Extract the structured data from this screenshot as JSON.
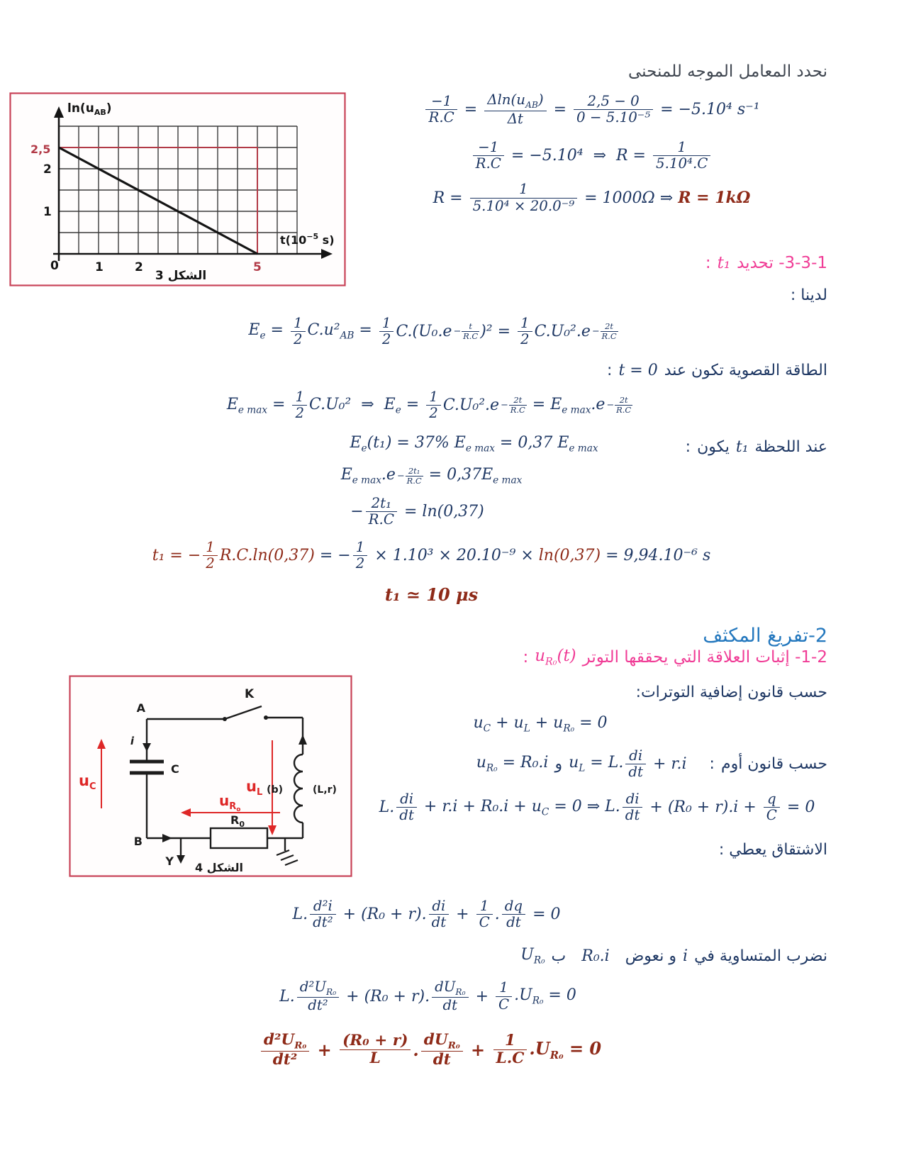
{
  "colors": {
    "body_text": "#1f3864",
    "result_red": "#8e2a18",
    "heading_pink": "#f03c96",
    "heading_blue": "#2478be",
    "heading_gray": "#3f4650",
    "figure_border": "#c84358",
    "graph_overlay_red": "#b23a47",
    "circuit_red": "#de2727"
  },
  "chart_data": {
    "type": "line",
    "title": "",
    "xlabel": "t(10⁻⁵ s)",
    "ylabel": "ln(u_AB)",
    "x": [
      0,
      5
    ],
    "y": [
      2.5,
      0
    ],
    "xlim": [
      0,
      6
    ],
    "ylim": [
      0,
      2.75
    ],
    "x_ticks_labeled": [
      "0",
      "1",
      "2",
      "5"
    ],
    "y_ticks_labeled": [
      "2,5",
      "2",
      "1"
    ],
    "grid": true,
    "legend": false,
    "annotations": [
      "red rectangle from (0,0) to (5, 2.5) marking the slope reading",
      "caption الشكل 3"
    ]
  },
  "fig3": {
    "caption": "الشكل 3",
    "y_label_pre": "ln(u",
    "y_label_sub": "AB",
    "y_label_post": ")",
    "x_label_pre": "t(10",
    "x_label_sup": "−5",
    "x_label_post": " s)",
    "tick_y_25": "2,5",
    "tick_y_2": "2",
    "tick_y_1": "1",
    "tick_x_0": "0",
    "tick_x_1": "1",
    "tick_x_2": "2",
    "tick_x_5": "5"
  },
  "fig4": {
    "caption": "الشكل 4",
    "node_a": "A",
    "node_b": "B",
    "switch_k": "K",
    "current_i": "i",
    "cap_c": "C",
    "probe_y": "Y",
    "r0_pre": "R",
    "r0_sub": "0",
    "coil_label": "(L,r)",
    "branch_label": "(b)",
    "uc_pre": "u",
    "uc_sub": "C",
    "ul_pre": "u",
    "ul_sub": "L",
    "ur0_pre": "u",
    "ur0_sub": "R",
    "ur0_sub2": "o"
  },
  "lines": {
    "slope_heading": {
      "segs": [
        {
          "a": "نحدد المعامل الموجه للمنحنى"
        }
      ]
    },
    "eq_slope1": {
      "segs": [
        {
          "m": [
            {
              "f": [
                "−1",
                "R.C"
              ]
            },
            {
              "x": " = "
            },
            {
              "f": [
                "Δln(u_{AB})",
                "Δt"
              ]
            },
            {
              "x": " = "
            },
            {
              "f": [
                "2,5 − 0",
                "0 − 5.10⁻⁵"
              ]
            },
            {
              "x": " = −5.10⁴ s⁻¹"
            }
          ]
        }
      ]
    },
    "eq_slope2": {
      "segs": [
        {
          "m": [
            {
              "f": [
                "−1",
                "R.C"
              ]
            },
            {
              "x": " = −5.10⁴  ⇒  R = "
            },
            {
              "f": [
                "1",
                "5.10⁴.C"
              ]
            }
          ]
        }
      ]
    },
    "eq_R": {
      "segs": [
        {
          "m": [
            {
              "x": "R = "
            },
            {
              "f": [
                "1",
                "5.10⁴ × 20.0⁻⁹"
              ]
            },
            {
              "x": " = 1000Ω ⇒ "
            },
            {
              "x": "R = 1kΩ",
              "c": "red",
              "b": 1
            }
          ]
        }
      ]
    },
    "h331": {
      "segs": [
        {
          "a": "3-3-1- تحديد"
        },
        {
          "m": [
            {
              "x": "t₁"
            }
          ]
        },
        {
          "a": ":"
        }
      ]
    },
    "ladayna": {
      "segs": [
        {
          "a": "لدينا :"
        }
      ]
    },
    "eq_Ee": {
      "segs": [
        {
          "m": [
            {
              "x": "E_{e} = "
            },
            {
              "f": [
                "1",
                "2"
              ]
            },
            {
              "x": "C.u²_{AB} = "
            },
            {
              "f": [
                "1",
                "2"
              ]
            },
            {
              "x": "C.(U₀.e"
            },
            {
              "sp": {
                "pre": "−",
                "f": [
                  "t",
                  "R.C"
                ]
              }
            },
            {
              "x": ")² = "
            },
            {
              "f": [
                "1",
                "2"
              ]
            },
            {
              "x": "C.U₀².e"
            },
            {
              "sp": {
                "pre": "−",
                "f": [
                  "2t",
                  "R.C"
                ]
              }
            }
          ]
        }
      ]
    },
    "t0_line": {
      "segs": [
        {
          "a": "الطاقة القصوية تكون عند"
        },
        {
          "m": [
            {
              "x": "t = 0"
            }
          ]
        },
        {
          "a": ":"
        }
      ]
    },
    "eq_Emax": {
      "segs": [
        {
          "m": [
            {
              "x": "E_{e max} = "
            },
            {
              "f": [
                "1",
                "2"
              ]
            },
            {
              "x": "C.U₀²  ⇒  E_{e} = "
            },
            {
              "f": [
                "1",
                "2"
              ]
            },
            {
              "x": "C.U₀².e"
            },
            {
              "sp": {
                "pre": "−",
                "f": [
                  "2t",
                  "R.C"
                ]
              }
            },
            {
              "x": " = E_{e max}.e"
            },
            {
              "sp": {
                "pre": "−",
                "f": [
                  "2t",
                  "R.C"
                ]
              }
            }
          ]
        }
      ]
    },
    "eq_37": {
      "segs": [
        {
          "m": [
            {
              "x": "E_{e}(t₁) = 37% E_{e max} = 0,37 E_{e max}"
            }
          ]
        }
      ]
    },
    "t1cond": {
      "segs": [
        {
          "a": "عند اللحظة"
        },
        {
          "m": [
            {
              "x": "t₁"
            }
          ]
        },
        {
          "a": "يكون"
        },
        {
          "a": ":"
        }
      ]
    },
    "eq_EmaxE": {
      "segs": [
        {
          "m": [
            {
              "x": "E_{e max}.e"
            },
            {
              "sp": {
                "pre": "−",
                "f": [
                  "2t₁",
                  "R.C"
                ]
              }
            },
            {
              "x": " = 0,37E_{e max}"
            }
          ]
        }
      ]
    },
    "eq_ln": {
      "segs": [
        {
          "m": [
            {
              "x": "−"
            },
            {
              "f": [
                "2t₁",
                "R.C"
              ]
            },
            {
              "x": " = ln(0,37)"
            }
          ]
        }
      ]
    },
    "eq_t1": {
      "segs": [
        {
          "m": [
            {
              "x": "t₁ = −",
              "c": "red"
            },
            {
              "f": [
                "1",
                "2"
              ],
              "c": "red"
            },
            {
              "x": "R.C.ln(0,37)",
              "c": "red"
            },
            {
              "x": " = −"
            },
            {
              "f": [
                "1",
                "2"
              ]
            },
            {
              "x": " × 1.10³ × 20.10⁻⁹ × "
            },
            {
              "x": "ln(0,37)",
              "c": "red"
            },
            {
              "x": " = 9,94.10⁻⁶ s"
            }
          ]
        }
      ]
    },
    "eq_t1a": {
      "segs": [
        {
          "m": [
            {
              "x": "t₁ ≃ 10 μs"
            }
          ]
        }
      ]
    },
    "h2": {
      "segs": [
        {
          "a": "2-تفريغ المكثف"
        }
      ]
    },
    "h21": {
      "segs": [
        {
          "a": "1-2- إثبات العلاقة التي يحققها التوتر"
        },
        {
          "m": [
            {
              "x": "u_{R₀}(t)"
            }
          ]
        },
        {
          "a": ":"
        }
      ]
    },
    "kvl_heading": {
      "segs": [
        {
          "a": "حسب قانون إضافية التوترات:"
        }
      ]
    },
    "eq_uc": {
      "segs": [
        {
          "m": [
            {
              "x": "u_{C} + u_{L} + u_{R₀} = 0"
            }
          ]
        }
      ]
    },
    "ohm_line": {
      "segs": [
        {
          "a": "حسب قانون أوم"
        },
        {
          "a": ":"
        },
        {
          "g": 14
        },
        {
          "m": [
            {
              "x": "u_{L} = L."
            },
            {
              "f": [
                "di",
                "dt"
              ]
            },
            {
              "x": " + r.i"
            }
          ]
        },
        {
          "a": "و"
        },
        {
          "m": [
            {
              "x": "u_{R₀} = R₀.i"
            }
          ]
        }
      ]
    },
    "eq_kvl": {
      "segs": [
        {
          "m": [
            {
              "x": "L."
            },
            {
              "f": [
                "di",
                "dt"
              ]
            },
            {
              "x": " + r.i + R₀.i + u_{C} = 0 ⇒ L."
            },
            {
              "f": [
                "di",
                "dt"
              ]
            },
            {
              "x": " + (R₀ + r).i + "
            },
            {
              "f": [
                "q",
                "C"
              ]
            },
            {
              "x": " = 0"
            }
          ]
        }
      ]
    },
    "deriv_line": {
      "segs": [
        {
          "a": "الاشتقاق يعطي :"
        }
      ]
    },
    "eq_d1": {
      "segs": [
        {
          "m": [
            {
              "x": "L."
            },
            {
              "f": [
                "d²i",
                "dt²"
              ]
            },
            {
              "x": " + (R₀ + r)."
            },
            {
              "f": [
                "di",
                "dt"
              ]
            },
            {
              "x": " + "
            },
            {
              "f": [
                "1",
                "C"
              ]
            },
            {
              "x": "."
            },
            {
              "f": [
                "dq",
                "dt"
              ]
            },
            {
              "x": " = 0"
            }
          ]
        }
      ]
    },
    "mult_line": {
      "segs": [
        {
          "a": "نضرب المتساوية في"
        },
        {
          "m": [
            {
              "x": "i"
            }
          ]
        },
        {
          "a": "و نعوض"
        },
        {
          "g": 4
        },
        {
          "m": [
            {
              "x": "R₀.i"
            }
          ]
        },
        {
          "g": 4
        },
        {
          "a": "ب"
        },
        {
          "m": [
            {
              "x": "U_{R₀}"
            }
          ]
        }
      ]
    },
    "eq_d2": {
      "segs": [
        {
          "m": [
            {
              "x": "L."
            },
            {
              "f": [
                "d²U_{R₀}",
                "dt²"
              ]
            },
            {
              "x": " + (R₀ + r)."
            },
            {
              "f": [
                "dU_{R₀}",
                "dt"
              ]
            },
            {
              "x": " + "
            },
            {
              "f": [
                "1",
                "C"
              ]
            },
            {
              "x": ".U_{R₀} = 0"
            }
          ]
        }
      ]
    },
    "eq_final": {
      "segs": [
        {
          "m": [
            {
              "f": [
                "d²U_{R₀}",
                "dt²"
              ]
            },
            {
              "x": " + "
            },
            {
              "f": [
                "(R₀ + r)",
                "L"
              ]
            },
            {
              "x": "."
            },
            {
              "f": [
                "dU_{R₀}",
                "dt"
              ]
            },
            {
              "x": " + "
            },
            {
              "f": [
                "1",
                "L.C"
              ]
            },
            {
              "x": ".U_{R₀} = 0"
            }
          ]
        }
      ]
    }
  }
}
